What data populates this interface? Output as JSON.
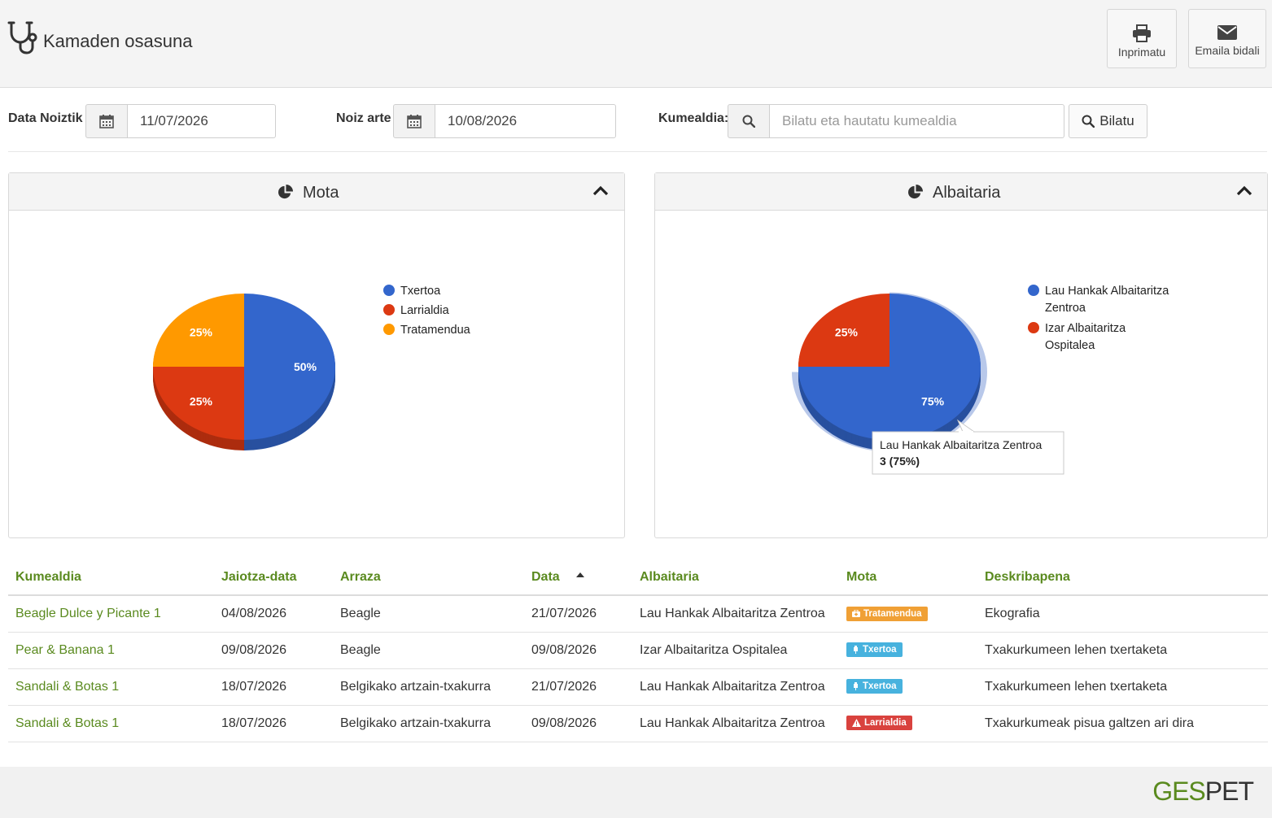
{
  "header": {
    "title": "Kamaden osasuna",
    "print_label": "Inprimatu",
    "email_label": "Emaila bidali"
  },
  "filters": {
    "from_label": "Data Noiztik",
    "from_value": "11/07/2026",
    "to_label": "Noiz arte",
    "to_value": "10/08/2026",
    "litter_label": "Kumealdia:",
    "litter_placeholder": "Bilatu eta hautatu kumealdia",
    "search_label": "Bilatu"
  },
  "panels": {
    "mota_title": "Mota",
    "albaitaria_title": "Albaitaria"
  },
  "chart_data": [
    {
      "type": "pie",
      "title": "Mota",
      "categories": [
        "Txertoa",
        "Larrialdia",
        "Tratamendua"
      ],
      "values": [
        50,
        25,
        25
      ],
      "labels": [
        "50%",
        "25%",
        "25%"
      ],
      "colors": [
        "#3366cc",
        "#dc3912",
        "#ff9900"
      ],
      "legend": "right"
    },
    {
      "type": "pie",
      "title": "Albaitaria",
      "categories": [
        "Lau Hankak Albaitaritza Zentroa",
        "Izar Albaitaritza Ospitalea"
      ],
      "values": [
        75,
        25
      ],
      "labels": [
        "75%",
        "25%"
      ],
      "colors": [
        "#3366cc",
        "#dc3912"
      ],
      "legend": "right",
      "tooltip": {
        "name": "Lau Hankak Albaitaritza Zentroa",
        "value": "3 (75%)"
      }
    }
  ],
  "legend_mota": [
    "Txertoa",
    "Larrialdia",
    "Tratamendua"
  ],
  "legend_albaitaria": [
    [
      "Lau Hankak Albaitaritza",
      "Zentroa"
    ],
    [
      "Izar Albaitaritza",
      "Ospitalea"
    ]
  ],
  "table": {
    "headers": [
      "Kumealdia",
      "Jaiotza-data",
      "Arraza",
      "Data",
      "Albaitaria",
      "Mota",
      "Deskribapena"
    ],
    "rows": [
      {
        "kumealdia": "Beagle Dulce y Picante 1",
        "jaiotza": "04/08/2026",
        "arraza": "Beagle",
        "data": "21/07/2026",
        "albaitaria": "Lau Hankak Albaitaritza Zentroa",
        "mota": "Tratamendua",
        "mota_color": "#f0a035",
        "mota_icon": "medkit-icon",
        "deskribapena": "Ekografia"
      },
      {
        "kumealdia": "Pear & Banana 1",
        "jaiotza": "09/08/2026",
        "arraza": "Beagle",
        "data": "09/08/2026",
        "albaitaria": "Izar Albaitaritza Ospitalea",
        "mota": "Txertoa",
        "mota_color": "#47b2de",
        "mota_icon": "syringe-icon",
        "deskribapena": "Txakurkumeen lehen txertaketa"
      },
      {
        "kumealdia": "Sandali & Botas 1",
        "jaiotza": "18/07/2026",
        "arraza": "Belgikako artzain-txakurra",
        "data": "21/07/2026",
        "albaitaria": "Lau Hankak Albaitaritza Zentroa",
        "mota": "Txertoa",
        "mota_color": "#47b2de",
        "mota_icon": "syringe-icon",
        "deskribapena": "Txakurkumeen lehen txertaketa"
      },
      {
        "kumealdia": "Sandali & Botas 1",
        "jaiotza": "18/07/2026",
        "arraza": "Belgikako artzain-txakurra",
        "data": "09/08/2026",
        "albaitaria": "Lau Hankak Albaitaritza Zentroa",
        "mota": "Larrialdia",
        "mota_color": "#d9423e",
        "mota_icon": "warning-icon",
        "deskribapena": "Txakurkumeak pisua galtzen ari dira"
      }
    ]
  },
  "footer": {
    "brand_a": "GES",
    "brand_b": "PET"
  }
}
